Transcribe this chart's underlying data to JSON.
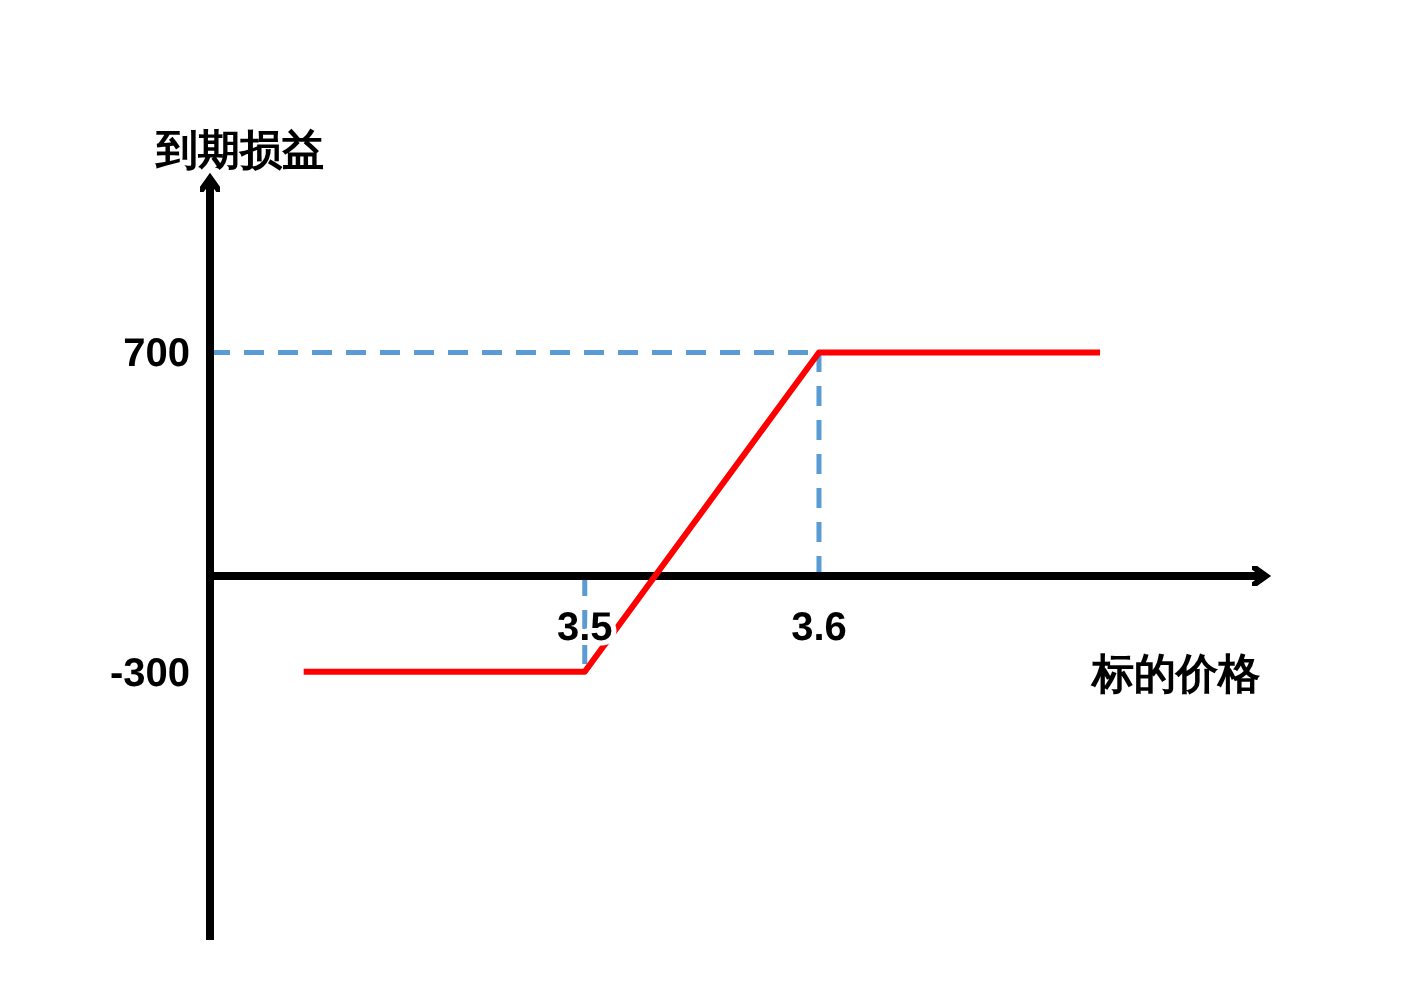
{
  "chart_data": {
    "type": "line",
    "xlabel": "标的价格",
    "ylabel": "到期损益",
    "x": [
      3.38,
      3.5,
      3.6,
      3.72
    ],
    "values": [
      -300,
      -300,
      700,
      700
    ],
    "color": "#ff0000",
    "xlim": [
      3.34,
      3.79
    ],
    "ylim": [
      -1140,
      1240
    ],
    "xticks": [
      3.5,
      3.6
    ],
    "yticks": [
      -300,
      700
    ],
    "ref_lines": [
      {
        "axis": "y",
        "value": 700,
        "color": "#5b9bd5",
        "line_style": "dashed"
      },
      {
        "axis": "x",
        "value": 3.6,
        "color": "#5b9bd5",
        "line_style": "dashed"
      },
      {
        "axis": "x",
        "value": 3.5,
        "color": "#5b9bd5",
        "line_style": "dashed"
      }
    ],
    "grid": false,
    "marker": "none",
    "line_style": "solid"
  }
}
